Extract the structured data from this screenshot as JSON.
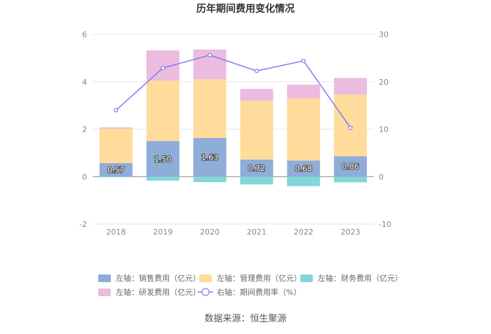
{
  "chart_data": {
    "type": "bar",
    "title": "历年期间费用变化情况",
    "categories": [
      "2018",
      "2019",
      "2020",
      "2021",
      "2022",
      "2023"
    ],
    "stacked": true,
    "y_left": {
      "min": -2,
      "max": 6,
      "ticks": [
        "-2",
        "0",
        "2",
        "4",
        "6"
      ]
    },
    "y_right": {
      "min": -10,
      "max": 30,
      "ticks": [
        "-10",
        "0",
        "10",
        "20",
        "30"
      ]
    },
    "grid": true,
    "legend_position": "bottom",
    "series": [
      {
        "name": "左轴：销售费用（亿元）",
        "axis": "left",
        "type": "bar",
        "color": "#8fadd9",
        "values": [
          0.57,
          1.5,
          1.63,
          0.72,
          0.68,
          0.86
        ],
        "labels": [
          "0.57",
          "1.50",
          "1.63",
          "0.72",
          "0.68",
          "0.86"
        ]
      },
      {
        "name": "左轴：管理费用（亿元）",
        "axis": "left",
        "type": "bar",
        "color": "#ffdb9c",
        "values": [
          1.45,
          2.55,
          2.48,
          2.48,
          2.62,
          2.6
        ]
      },
      {
        "name": "左轴：财务费用（亿元）",
        "axis": "left",
        "type": "bar",
        "color": "#84d6d9",
        "values": [
          -0.02,
          -0.17,
          -0.23,
          -0.33,
          -0.4,
          -0.24
        ]
      },
      {
        "name": "左轴：研发费用（亿元）",
        "axis": "left",
        "type": "bar",
        "color": "#ebbcdf",
        "values": [
          0.06,
          1.27,
          1.25,
          0.5,
          0.58,
          0.7
        ]
      },
      {
        "name": "右轴：期间费用率（%）",
        "axis": "right",
        "type": "line",
        "color": "#7b7ef0",
        "values": [
          14.0,
          22.9,
          25.6,
          22.3,
          24.4,
          10.3
        ]
      }
    ]
  },
  "source": "数据来源：恒生聚源"
}
